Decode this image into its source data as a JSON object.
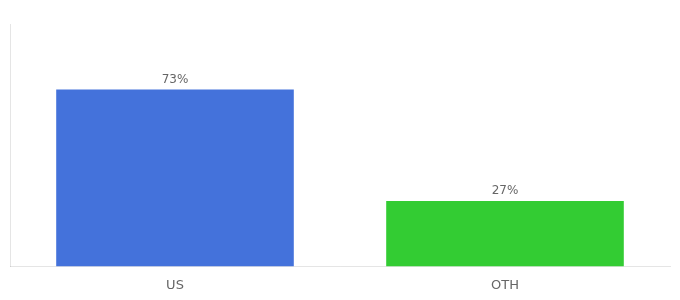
{
  "chart_data": {
    "type": "bar",
    "categories": [
      "US",
      "OTH"
    ],
    "values": [
      73,
      27
    ],
    "value_labels": [
      "73%",
      "27%"
    ],
    "colors": [
      "#4472db",
      "#33cc33"
    ],
    "data_labels": true,
    "ylim": [
      0,
      100
    ],
    "tick_labels": "x",
    "grid": false
  }
}
